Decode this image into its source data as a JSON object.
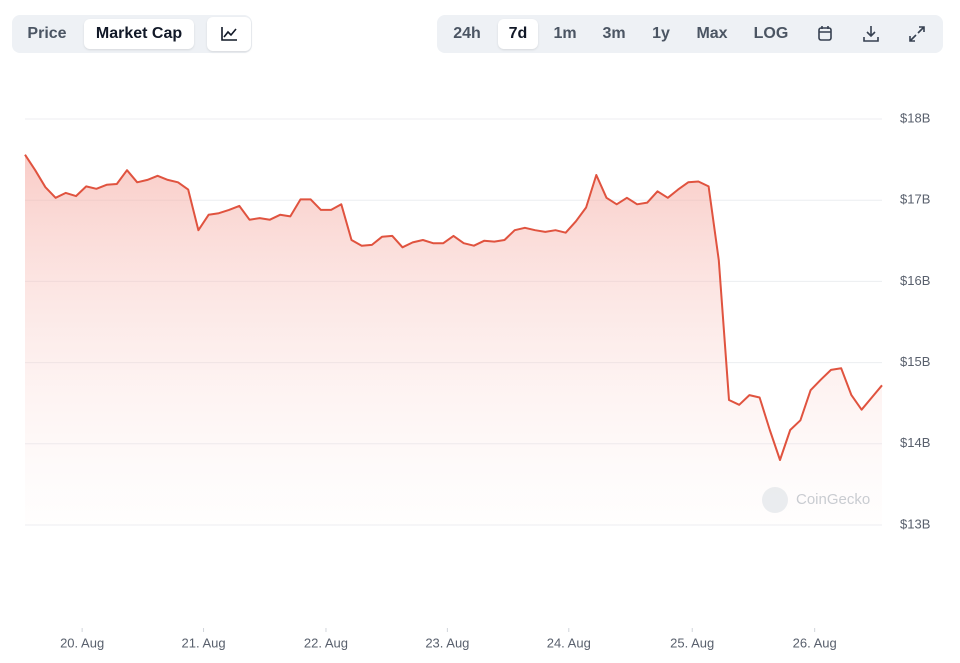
{
  "toolbar": {
    "left": [
      "Price",
      "Market Cap"
    ],
    "right": [
      "24h",
      "7d",
      "1m",
      "3m",
      "1y",
      "Max",
      "LOG"
    ]
  },
  "chart_data": {
    "type": "area",
    "watermark": "CoinGecko",
    "color": "#e0533f",
    "values": [
      17.56,
      17.37,
      17.16,
      17.03,
      17.09,
      17.05,
      17.17,
      17.14,
      17.19,
      17.2,
      17.37,
      17.22,
      17.25,
      17.3,
      17.25,
      17.22,
      17.13,
      16.63,
      16.82,
      16.84,
      16.88,
      16.93,
      16.76,
      16.78,
      16.76,
      16.82,
      16.8,
      17.01,
      17.01,
      16.88,
      16.88,
      16.95,
      16.51,
      16.44,
      16.45,
      16.55,
      16.56,
      16.42,
      16.48,
      16.51,
      16.47,
      16.47,
      16.56,
      16.47,
      16.44,
      16.5,
      16.49,
      16.51,
      16.63,
      16.66,
      16.63,
      16.61,
      16.63,
      16.6,
      16.74,
      16.91,
      17.31,
      17.03,
      16.95,
      17.03,
      16.95,
      16.97,
      17.11,
      17.03,
      17.13,
      17.22,
      17.23,
      17.17,
      16.26,
      14.54,
      14.48,
      14.6,
      14.57,
      14.17,
      13.8,
      14.17,
      14.29,
      14.66,
      14.79,
      14.91,
      14.93,
      14.6,
      14.42,
      14.57,
      14.72
    ],
    "xlim": [
      0,
      84
    ],
    "xticks": [
      {
        "value": 5.6,
        "label": "20. Aug"
      },
      {
        "value": 17.5,
        "label": "21. Aug"
      },
      {
        "value": 29.5,
        "label": "22. Aug"
      },
      {
        "value": 41.4,
        "label": "23. Aug"
      },
      {
        "value": 53.3,
        "label": "24. Aug"
      },
      {
        "value": 65.4,
        "label": "25. Aug"
      },
      {
        "value": 77.4,
        "label": "26. Aug"
      }
    ],
    "ylim": [
      13,
      18
    ],
    "yticks": [
      {
        "value": 18,
        "label": "$18B"
      },
      {
        "value": 17,
        "label": "$17B"
      },
      {
        "value": 16,
        "label": "$16B"
      },
      {
        "value": 15,
        "label": "$15B"
      },
      {
        "value": 14,
        "label": "$14B"
      },
      {
        "value": 13,
        "label": "$13B"
      }
    ],
    "grid": true
  }
}
